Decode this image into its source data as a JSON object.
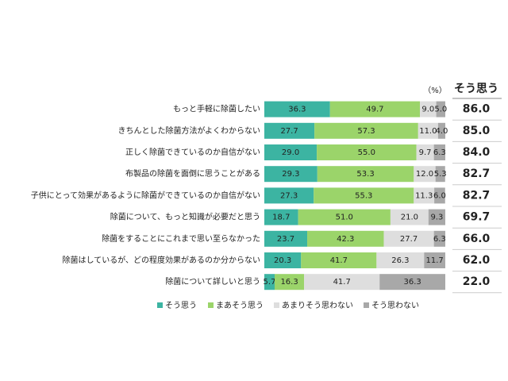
{
  "chart_data": {
    "type": "stacked-bar-horizontal",
    "unit_label": "（%）",
    "categories": [
      "もっと手軽に除菌したい",
      "きちんとした除菌方法がよくわからない",
      "正しく除菌できているのか自信がない",
      "布製品の除菌を面倒に思うことがある",
      "子供にとって効果があるように除菌ができているのか自信がない",
      "除菌について、もっと知識が必要だと思う",
      "除菌をすることにこれまで思い至らなかった",
      "除菌はしているが、どの程度効果があるのか分からない",
      "除菌について詳しいと思う"
    ],
    "xlim": [
      0,
      100
    ],
    "series": [
      {
        "name": "そう思う",
        "color": "#3cb4a2",
        "values": [
          36.3,
          27.7,
          29.0,
          29.3,
          27.3,
          18.7,
          23.7,
          20.3,
          5.7
        ],
        "value_labels": [
          "36.3",
          "27.7",
          "29.0",
          "29.3",
          "27.3",
          "18.7",
          "23.7",
          "20.3",
          "5.7"
        ]
      },
      {
        "name": "まあそう思う",
        "color": "#9bd46a",
        "values": [
          49.7,
          57.3,
          55.0,
          53.3,
          55.3,
          51.0,
          42.3,
          41.7,
          16.3
        ],
        "value_labels": [
          "49.7",
          "57.3",
          "55.0",
          "53.3",
          "55.3",
          "51.0",
          "42.3",
          "41.7",
          "16.3"
        ]
      },
      {
        "name": "あまりそう思わない",
        "color": "#dedede",
        "values": [
          9.0,
          11.0,
          9.7,
          12.0,
          11.3,
          21.0,
          27.7,
          26.3,
          41.7
        ],
        "value_labels": [
          "9.0",
          "11.0",
          "9.7",
          "12.0",
          "11.3",
          "21.0",
          "27.7",
          "26.3",
          "41.7"
        ]
      },
      {
        "name": "そう思わない",
        "color": "#a8a8a8",
        "values": [
          5.0,
          4.0,
          6.3,
          5.3,
          6.0,
          9.3,
          6.3,
          11.7,
          36.3
        ],
        "value_labels": [
          "5.0",
          "4.0",
          "6.3",
          "5.3",
          "6.0",
          "9.3",
          "6.3",
          "11.7",
          "36.3"
        ]
      }
    ],
    "total_column": {
      "name": "そう思う",
      "values": [
        86.0,
        85.0,
        84.0,
        82.7,
        82.7,
        69.7,
        66.0,
        62.0,
        22.0
      ],
      "value_labels": [
        "86.0",
        "85.0",
        "84.0",
        "82.7",
        "82.7",
        "69.7",
        "66.0",
        "62.0",
        "22.0"
      ]
    }
  }
}
